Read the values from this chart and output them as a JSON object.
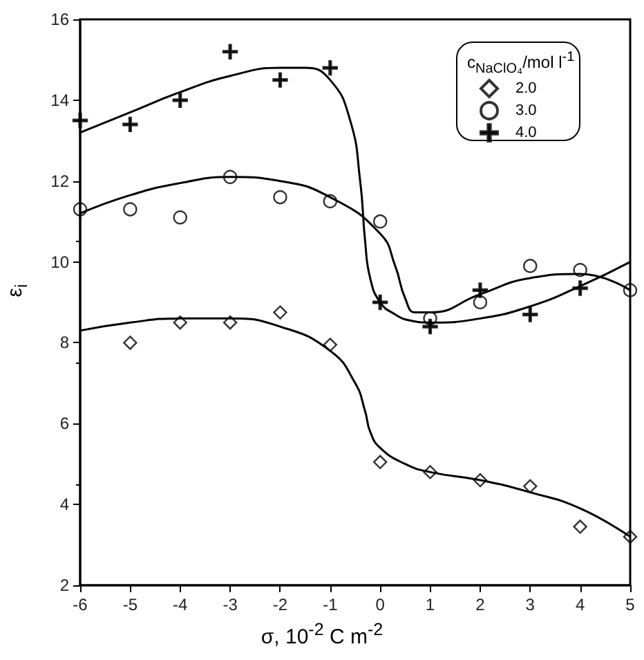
{
  "chart_data": {
    "type": "scatter",
    "xlabel": "σ, 10$^{-2}$ C m$^{-2}$",
    "ylabel": "ε$_{i}$",
    "legend_title": "c$_{NaClO₄}$/mol l$^{-1}$",
    "xlim": [
      -6,
      5
    ],
    "xticks": [
      -6,
      -5,
      -4,
      -3,
      -2,
      -1,
      0,
      1,
      2,
      3,
      4,
      5
    ],
    "ylim": [
      2,
      16
    ],
    "yticks": [
      2,
      4,
      6,
      8,
      10,
      12,
      14,
      16
    ],
    "grid": false,
    "legend": "top right",
    "series": [
      {
        "name": "2.0",
        "marker": "diamond",
        "color": "#000000",
        "x": [
          -5,
          -4,
          -3,
          -2,
          -1,
          0,
          1,
          2,
          3,
          4,
          5
        ],
        "values": [
          8.0,
          8.5,
          8.5,
          8.75,
          7.95,
          5.05,
          4.8,
          4.6,
          4.45,
          3.45,
          3.2
        ]
      },
      {
        "name": "3.0",
        "marker": "circle",
        "color": "#000000",
        "x": [
          -6,
          -5,
          -4,
          -3,
          -2,
          -1,
          0,
          1,
          2,
          3,
          4,
          5
        ],
        "values": [
          11.3,
          11.3,
          11.1,
          12.1,
          11.6,
          11.5,
          11.0,
          8.6,
          9.0,
          9.9,
          9.8,
          9.3
        ]
      },
      {
        "name": "4.0",
        "marker": "cross",
        "color": "#000000",
        "x": [
          -6,
          -5,
          -4,
          -3,
          -2,
          -1,
          0,
          1,
          2,
          3,
          4
        ],
        "values": [
          13.5,
          13.4,
          14.0,
          15.2,
          14.5,
          14.8,
          9.0,
          8.4,
          9.3,
          8.7,
          9.35
        ]
      },
      {
        "type": "line",
        "marker": "none",
        "line_style": "solid",
        "color": "#000000",
        "x": [
          -6,
          -5,
          -4,
          -3,
          -2,
          -1,
          -0.5,
          -0.3,
          -0.2,
          0,
          0.5,
          1,
          2,
          3,
          4,
          5
        ],
        "values": [
          8.3,
          8.5,
          8.6,
          8.6,
          8.4,
          7.8,
          7.0,
          6.3,
          5.8,
          5.4,
          5.0,
          4.8,
          4.6,
          4.3,
          3.9,
          3.2
        ]
      },
      {
        "type": "line",
        "marker": "none",
        "line_style": "solid",
        "color": "#000000",
        "x": [
          -6,
          -5,
          -4,
          -3,
          -2,
          -1,
          0,
          0.3,
          0.5,
          0.7,
          1,
          2,
          3,
          4,
          5
        ],
        "values": [
          11.2,
          11.65,
          11.95,
          12.1,
          12.0,
          11.6,
          10.7,
          9.9,
          9.1,
          8.75,
          8.75,
          9.2,
          9.6,
          9.7,
          9.3
        ]
      },
      {
        "type": "line",
        "marker": "none",
        "line_style": "solid",
        "color": "#000000",
        "x": [
          -6,
          -5,
          -4,
          -3,
          -2,
          -1.5,
          -1,
          -0.6,
          -0.4,
          -0.3,
          -0.2,
          0,
          0.3,
          0.6,
          1,
          2,
          3,
          4,
          5
        ],
        "values": [
          13.2,
          13.7,
          14.2,
          14.6,
          14.8,
          14.8,
          14.5,
          13.5,
          12.0,
          10.5,
          9.6,
          9.0,
          8.7,
          8.55,
          8.5,
          8.6,
          8.9,
          9.4,
          10.0
        ]
      }
    ]
  }
}
